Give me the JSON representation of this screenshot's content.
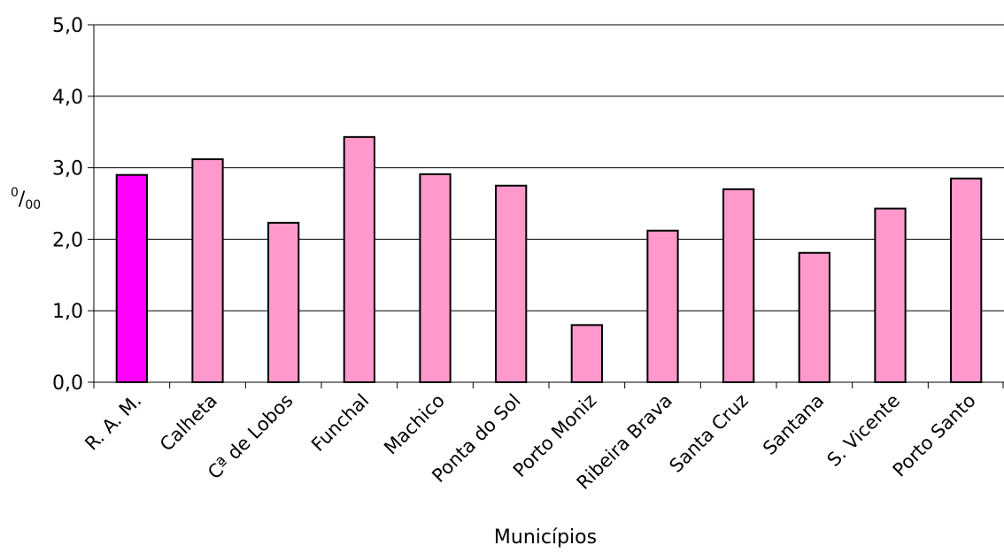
{
  "chart_data": {
    "type": "bar",
    "title": "",
    "xlabel": "Municípios",
    "ylabel": {
      "sup": "0",
      "slash": "/",
      "sub": "00"
    },
    "ylim": [
      0,
      5
    ],
    "yticks": [
      "0,0",
      "1,0",
      "2,0",
      "3,0",
      "4,0",
      "5,0"
    ],
    "grid": true,
    "legend": "none",
    "categories": [
      "R. A. M.",
      "Calheta",
      "Cª de Lobos",
      "Funchal",
      "Machico",
      "Ponta do Sol",
      "Porto Moniz",
      "Ribeira Brava",
      "Santa Cruz",
      "Santana",
      "S. Vicente",
      "Porto Santo"
    ],
    "values": [
      2.9,
      3.12,
      2.23,
      3.43,
      2.91,
      2.75,
      0.8,
      2.12,
      2.7,
      1.81,
      2.43,
      2.85
    ],
    "colors": {
      "highlight": "#ff00ff",
      "bar": "#ff99cc",
      "stroke": "#000000",
      "grid": "#000000"
    },
    "highlight_index": 0
  }
}
